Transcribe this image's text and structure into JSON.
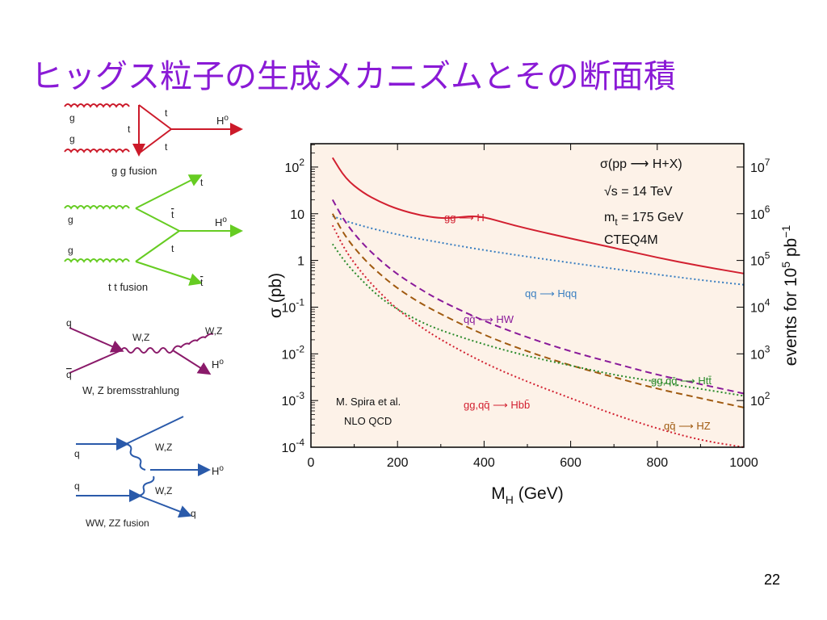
{
  "slide": {
    "title": "ヒッグス粒子の生成メカニズムとその断面積",
    "page_number": "22"
  },
  "diagrams": [
    {
      "caption": "g g fusion",
      "labels": [
        "g",
        "g",
        "t",
        "t",
        "t",
        "H",
        "o"
      ]
    },
    {
      "caption": "t t fusion",
      "labels": [
        "g",
        "g",
        "t",
        "t",
        "t",
        "t",
        "H",
        "o"
      ]
    },
    {
      "caption": "W, Z bremsstrahlung",
      "labels": [
        "q",
        "q",
        "W,Z",
        "W,Z",
        "H",
        "o"
      ]
    },
    {
      "caption": "WW, ZZ fusion",
      "labels": [
        "q",
        "q",
        "W,Z",
        "W,Z",
        "H",
        "o",
        "q"
      ]
    }
  ],
  "chart_data": {
    "type": "line",
    "xlabel_main": "M",
    "xlabel_sub": "H",
    "xlabel_rest": " (GeV)",
    "ylabel": "σ (pb)",
    "y2label": "events for 10",
    "y2label_exp": "5",
    "y2label_rest": " pb",
    "y2label_exp2": "−1",
    "xlim": [
      0,
      1000
    ],
    "ylim_log10": [
      -4,
      2.5
    ],
    "y_scale": "log",
    "x_ticks": [
      "0",
      "200",
      "400",
      "600",
      "800",
      "1000"
    ],
    "y_ticks": [
      {
        "v": 2,
        "base": "10",
        "exp": "2"
      },
      {
        "v": 1,
        "base": "10",
        "exp": ""
      },
      {
        "v": 0,
        "base": "1",
        "exp": ""
      },
      {
        "v": -1,
        "base": "10",
        "exp": "-1"
      },
      {
        "v": -2,
        "base": "10",
        "exp": "-2"
      },
      {
        "v": -3,
        "base": "10",
        "exp": "-3"
      },
      {
        "v": -4,
        "base": "10",
        "exp": "-4"
      }
    ],
    "y2_ticks": [
      {
        "v": 2,
        "base": "10",
        "exp": "7"
      },
      {
        "v": 1,
        "base": "10",
        "exp": "6"
      },
      {
        "v": 0,
        "base": "10",
        "exp": "5"
      },
      {
        "v": -1,
        "base": "10",
        "exp": "4"
      },
      {
        "v": -2,
        "base": "10",
        "exp": "3"
      },
      {
        "v": -3,
        "base": "10",
        "exp": "2"
      }
    ],
    "annotations": {
      "process": "σ(pp ⟶ H+X)",
      "energy": "√s = 14 TeV",
      "mtop": "m",
      "mtop_sub": "t",
      "mtop_rest": " = 175 GeV",
      "pdf": "CTEQ4M",
      "author": "M. Spira et al.",
      "order": "NLO  QCD"
    },
    "series": [
      {
        "name": "gg → H",
        "color": "#d22030",
        "dash": "solid",
        "x": [
          50,
          80,
          120,
          160,
          200,
          250,
          300,
          340,
          370,
          400,
          450,
          500,
          600,
          700,
          800,
          900,
          1000
        ],
        "log_y": [
          2.2,
          1.75,
          1.45,
          1.25,
          1.1,
          0.97,
          0.9,
          0.92,
          0.95,
          0.93,
          0.8,
          0.68,
          0.47,
          0.27,
          0.06,
          -0.12,
          -0.28
        ]
      },
      {
        "name": "qq → Hqq",
        "color": "#3a7fc1",
        "dash": "dot",
        "x": [
          50,
          100,
          200,
          300,
          400,
          500,
          600,
          700,
          800,
          900,
          1000
        ],
        "log_y": [
          0.95,
          0.78,
          0.55,
          0.38,
          0.22,
          0.08,
          -0.05,
          -0.18,
          -0.3,
          -0.42,
          -0.52
        ]
      },
      {
        "name": "qq̄ → HW",
        "color": "#8a1a9a",
        "dash": "dash",
        "x": [
          50,
          80,
          120,
          160,
          200,
          250,
          300,
          400,
          500,
          600,
          700,
          800,
          900,
          1000
        ],
        "log_y": [
          1.3,
          0.8,
          0.35,
          0.0,
          -0.3,
          -0.6,
          -0.87,
          -1.3,
          -1.65,
          -1.95,
          -2.2,
          -2.45,
          -2.65,
          -2.85
        ]
      },
      {
        "name": "qq̄ → HZ",
        "color": "#a05a10",
        "dash": "dash",
        "x": [
          50,
          80,
          120,
          160,
          200,
          250,
          300,
          400,
          500,
          600,
          700,
          800,
          900,
          1000
        ],
        "log_y": [
          1.0,
          0.5,
          0.05,
          -0.3,
          -0.6,
          -0.9,
          -1.15,
          -1.6,
          -1.95,
          -2.25,
          -2.5,
          -2.75,
          -2.95,
          -3.15
        ]
      },
      {
        "name": "gg,qq̄ → Htt̄",
        "color": "#2a8a2a",
        "dash": "dot",
        "x": [
          50,
          80,
          120,
          160,
          200,
          250,
          300,
          400,
          500,
          600,
          700,
          800,
          900,
          1000
        ],
        "log_y": [
          0.35,
          -0.05,
          -0.45,
          -0.8,
          -1.05,
          -1.3,
          -1.5,
          -1.8,
          -2.05,
          -2.25,
          -2.45,
          -2.6,
          -2.75,
          -2.9
        ]
      },
      {
        "name": "gg,qq̄ → Hbb̄",
        "color": "#d22030",
        "dash": "dot",
        "x": [
          50,
          80,
          120,
          160,
          200,
          250,
          300,
          400,
          500,
          600,
          700,
          800,
          900,
          1000
        ],
        "log_y": [
          0.75,
          0.2,
          -0.3,
          -0.7,
          -1.05,
          -1.4,
          -1.7,
          -2.2,
          -2.6,
          -2.95,
          -3.3,
          -3.6,
          -3.85,
          -4.1
        ]
      }
    ],
    "series_labels": [
      {
        "text": "gg ⟶ H",
        "color": "#d22030"
      },
      {
        "text": "qq ⟶ Hqq",
        "color": "#3a7fc1"
      },
      {
        "text": "qq̄ ⟶ HW",
        "color": "#8a1a9a"
      },
      {
        "text": "gg,qq̄ ⟶ Htt̄",
        "color": "#2a8a2a"
      },
      {
        "text": "gg,qq̄ ⟶ Hbb̄",
        "color": "#d22030"
      },
      {
        "text": "qq̄ ⟶ HZ",
        "color": "#a05a10"
      }
    ],
    "colors": {
      "plot_bg": "#fdf2e8",
      "frame": "#000000"
    }
  }
}
